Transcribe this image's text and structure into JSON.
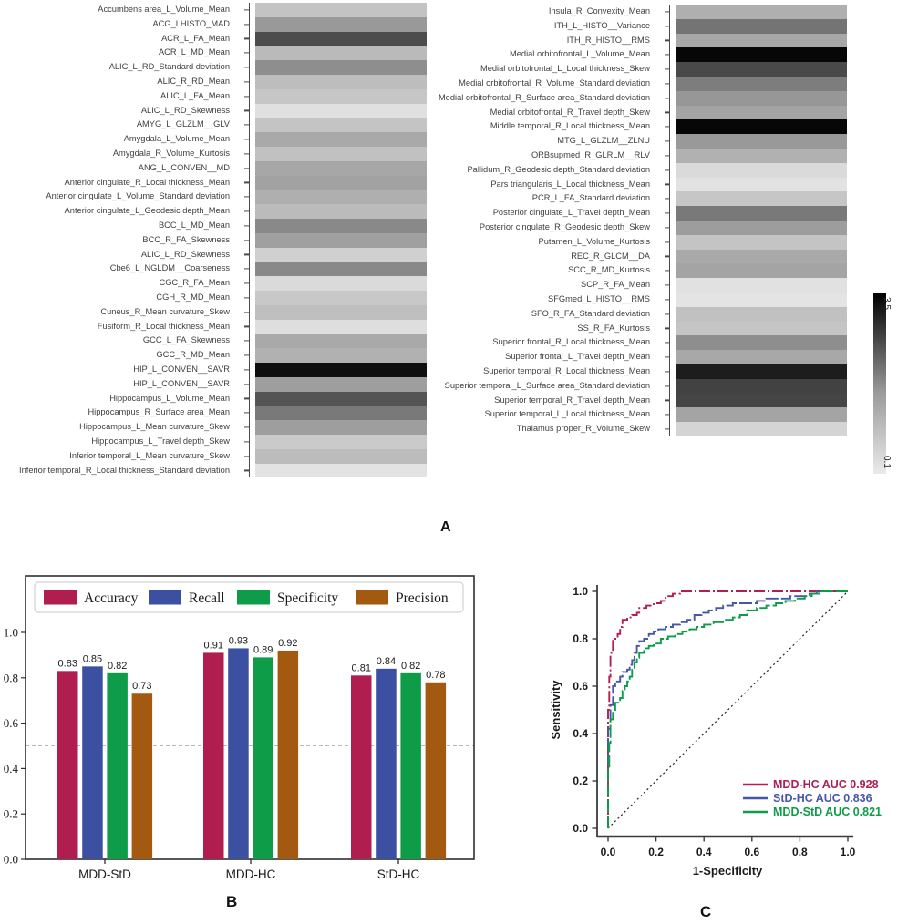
{
  "panels": {
    "a_label": "A",
    "b_label": "B",
    "c_label": "C"
  },
  "chart_data": [
    {
      "type": "heatmap",
      "colorbar": {
        "min": 0.1,
        "max": 3.5,
        "min_label": "0.1",
        "max_label": "3.5"
      },
      "left_rows": [
        {
          "label": "Accumbens area_L_Volume_Mean",
          "value": 0.66
        },
        {
          "label": "ACG_LHISTO_MAD",
          "value": 1.27
        },
        {
          "label": "ACR_L_FA_Mean",
          "value": 2.39
        },
        {
          "label": "ACR_L_MD_Mean",
          "value": 0.78
        },
        {
          "label": "ALIC_L_RD_Standard deviation",
          "value": 1.43
        },
        {
          "label": "ALIC_R_RD_Mean",
          "value": 0.74
        },
        {
          "label": "ALIC_L_FA_Mean",
          "value": 0.61
        },
        {
          "label": "ALIC_L_RD_Skewness",
          "value": 0.23
        },
        {
          "label": "AMYG_L_GLZLM__GLV",
          "value": 0.64
        },
        {
          "label": "Amygdala_L_Volume_Mean",
          "value": 1.03
        },
        {
          "label": "Amygdala_R_Volume_Kurtosis",
          "value": 0.68
        },
        {
          "label": "ANG_L_CONVEN__MD",
          "value": 1.07
        },
        {
          "label": "Anterior cingulate_R_Local thickness_Mean",
          "value": 1.14
        },
        {
          "label": "Anterior cingulate_L_Volume_Standard deviation",
          "value": 0.95
        },
        {
          "label": "Anterior cingulate_L_Geodesic depth_Mean",
          "value": 0.77
        },
        {
          "label": "BCC_L_MD_Mean",
          "value": 1.5
        },
        {
          "label": "BCC_R_FA_Skewness",
          "value": 1.16
        },
        {
          "label": "ALIC_L_RD_Skewness",
          "value": 0.46
        },
        {
          "label": "Cbe6_L_NGLDM__Coarseness",
          "value": 1.5
        },
        {
          "label": "CGC_R_FA_Mean",
          "value": 0.32
        },
        {
          "label": "CGH_R_MD_Mean",
          "value": 0.58
        },
        {
          "label": "Cuneus_R_Mean curvature_Skew",
          "value": 0.72
        },
        {
          "label": "Fusiform_R_Local thickness_Mean",
          "value": 0.26
        },
        {
          "label": "GCC_L_FA_Skewness",
          "value": 1.03
        },
        {
          "label": "GCC_R_MD_Mean",
          "value": 0.91
        },
        {
          "label": "HIP_L_CONVEN__SAVR",
          "value": 3.3
        },
        {
          "label": "HIP_L_CONVEN__SAVR",
          "value": 1.19
        },
        {
          "label": "Hippocampus_L_Volume_Mean",
          "value": 2.27
        },
        {
          "label": "Hippocampus_R_Surface area_Mean",
          "value": 1.73
        },
        {
          "label": "Hippocampus_L_Mean curvature_Skew",
          "value": 1.19
        },
        {
          "label": "Hippocampus_L_Travel depth_Skew",
          "value": 0.55
        },
        {
          "label": "Inferior temporal_L_Mean curvature_Skew",
          "value": 0.75
        },
        {
          "label": "Inferior temporal_R_Local thickness_Standard deviation",
          "value": 0.19
        }
      ],
      "right_rows": [
        {
          "label": "Insula_R_Convexity_Mean",
          "value": 0.95
        },
        {
          "label": "ITH_L_HISTO__Variance",
          "value": 1.81
        },
        {
          "label": "ITH_R_HISTO__RMS",
          "value": 1.07
        },
        {
          "label": "Medial orbitofrontal_L_Volume_Mean",
          "value": 3.4
        },
        {
          "label": "Medial orbitofrontal_L_Local thickness_Skew",
          "value": 2.43
        },
        {
          "label": "Medial orbitofrontal_R_Volume_Standard deviation",
          "value": 1.68
        },
        {
          "label": "Medial orbitofrontal_R_Surface area_Standard deviation",
          "value": 1.29
        },
        {
          "label": "Medial orbitofrontal_R_Travel depth_Skew",
          "value": 1.11
        },
        {
          "label": "Middle temporal_R_Local thickness_Mean",
          "value": 3.4
        },
        {
          "label": "MTG_L_GLZLM__ZLNU",
          "value": 1.27
        },
        {
          "label": "ORBsupmed_R_GLRLM__RLV",
          "value": 0.92
        },
        {
          "label": "Pallidum_R_Geodesic depth_Standard deviation",
          "value": 0.32
        },
        {
          "label": "Pars triangularis_L_Local thickness_Mean",
          "value": 0.2
        },
        {
          "label": "PCR_L_FA_Standard deviation",
          "value": 0.61
        },
        {
          "label": "Posterior cingulate_L_Travel depth_Mean",
          "value": 1.73
        },
        {
          "label": "Posterior cingulate_R_Geodesic depth_Skew",
          "value": 1.21
        },
        {
          "label": "Putamen_L_Volume_Kurtosis",
          "value": 0.64
        },
        {
          "label": "REC_R_GLCM__DA",
          "value": 1.04
        },
        {
          "label": "SCC_R_MD_Kurtosis",
          "value": 1.11
        },
        {
          "label": "SCP_R_FA_Mean",
          "value": 0.22
        },
        {
          "label": "SFGmed_L_HISTO__RMS",
          "value": 0.17
        },
        {
          "label": "SFO_R_FA_Standard deviation",
          "value": 0.68
        },
        {
          "label": "SS_R_FA_Kurtosis",
          "value": 0.62
        },
        {
          "label": "Superior frontal_R_Local thickness_Mean",
          "value": 1.43
        },
        {
          "label": "Superior frontal_L_Travel depth_Mean",
          "value": 1.05
        },
        {
          "label": "Superior temporal_R_Local thickness_Mean",
          "value": 3.07
        },
        {
          "label": "Superior temporal_L_Surface area_Standard deviation",
          "value": 2.54
        },
        {
          "label": "Superior temporal_R_Travel depth_Mean",
          "value": 2.5
        },
        {
          "label": "Superior temporal_L_Local thickness_Mean",
          "value": 1.1
        },
        {
          "label": "Thalamus proper_R_Volume_Skew",
          "value": 0.4
        }
      ]
    },
    {
      "type": "bar",
      "categories": [
        "MDD-StD",
        "MDD-HC",
        "StD-HC"
      ],
      "series": [
        {
          "name": "Accuracy",
          "color": "#b01e50",
          "values": [
            0.83,
            0.91,
            0.81
          ]
        },
        {
          "name": "Recall",
          "color": "#3c50a2",
          "values": [
            0.85,
            0.93,
            0.84
          ]
        },
        {
          "name": "Specificity",
          "color": "#0f9c49",
          "values": [
            0.82,
            0.89,
            0.82
          ]
        },
        {
          "name": "Precision",
          "color": "#a3590f",
          "values": [
            0.73,
            0.92,
            0.78
          ]
        }
      ],
      "ylim": [
        0,
        1.25
      ],
      "yticks": [
        0,
        0.2,
        0.4,
        0.6,
        0.8,
        1.0
      ],
      "ref_line": 0.5,
      "legend_position": "top"
    },
    {
      "type": "line",
      "xlabel": "1-Specificity",
      "ylabel": "Sensitivity",
      "xticks": [
        0,
        0.2,
        0.4,
        0.6,
        0.8,
        1.0
      ],
      "yticks": [
        0,
        0.2,
        0.4,
        0.6,
        0.8,
        1.0
      ],
      "diagonal": true,
      "series": [
        {
          "label": "MDD-HC AUC 0.928",
          "color": "#b21e52",
          "dash": "12 3 2 3",
          "points": [
            [
              0,
              0
            ],
            [
              0,
              0.5
            ],
            [
              0.005,
              0.56
            ],
            [
              0.005,
              0.64
            ],
            [
              0.01,
              0.68
            ],
            [
              0.01,
              0.74
            ],
            [
              0.02,
              0.76
            ],
            [
              0.02,
              0.8
            ],
            [
              0.04,
              0.82
            ],
            [
              0.05,
              0.85
            ],
            [
              0.06,
              0.88
            ],
            [
              0.08,
              0.89
            ],
            [
              0.1,
              0.9
            ],
            [
              0.12,
              0.91
            ],
            [
              0.13,
              0.93
            ],
            [
              0.16,
              0.94
            ],
            [
              0.19,
              0.95
            ],
            [
              0.22,
              0.96
            ],
            [
              0.24,
              0.98
            ],
            [
              0.27,
              0.99
            ],
            [
              0.3,
              1
            ],
            [
              1,
              1
            ]
          ]
        },
        {
          "label": "StD-HC AUC 0.836",
          "color": "#4656aa",
          "dash": "14 3",
          "points": [
            [
              0,
              0
            ],
            [
              0,
              0.42
            ],
            [
              0.01,
              0.46
            ],
            [
              0.01,
              0.52
            ],
            [
              0.02,
              0.56
            ],
            [
              0.02,
              0.6
            ],
            [
              0.03,
              0.62
            ],
            [
              0.05,
              0.64
            ],
            [
              0.06,
              0.66
            ],
            [
              0.08,
              0.67
            ],
            [
              0.09,
              0.69
            ],
            [
              0.1,
              0.71
            ],
            [
              0.11,
              0.74
            ],
            [
              0.12,
              0.77
            ],
            [
              0.13,
              0.79
            ],
            [
              0.15,
              0.8
            ],
            [
              0.17,
              0.82
            ],
            [
              0.19,
              0.83
            ],
            [
              0.21,
              0.84
            ],
            [
              0.24,
              0.85
            ],
            [
              0.27,
              0.86
            ],
            [
              0.3,
              0.87
            ],
            [
              0.33,
              0.88
            ],
            [
              0.36,
              0.9
            ],
            [
              0.39,
              0.91
            ],
            [
              0.42,
              0.92
            ],
            [
              0.45,
              0.93
            ],
            [
              0.48,
              0.94
            ],
            [
              0.52,
              0.95
            ],
            [
              0.58,
              0.95
            ],
            [
              0.62,
              0.96
            ],
            [
              0.66,
              0.97
            ],
            [
              0.72,
              0.97
            ],
            [
              0.76,
              0.98
            ],
            [
              0.8,
              0.98
            ],
            [
              0.84,
              0.99
            ],
            [
              0.87,
              1
            ],
            [
              1,
              1
            ]
          ]
        },
        {
          "label": "MDD-StD AUC 0.821",
          "color": "#0f9c49",
          "dash": "14 3",
          "points": [
            [
              0,
              0
            ],
            [
              0,
              0.26
            ],
            [
              0.005,
              0.3
            ],
            [
              0.005,
              0.36
            ],
            [
              0.01,
              0.4
            ],
            [
              0.01,
              0.46
            ],
            [
              0.02,
              0.5
            ],
            [
              0.03,
              0.53
            ],
            [
              0.05,
              0.55
            ],
            [
              0.06,
              0.58
            ],
            [
              0.07,
              0.6
            ],
            [
              0.08,
              0.62
            ],
            [
              0.09,
              0.64
            ],
            [
              0.1,
              0.67
            ],
            [
              0.11,
              0.7
            ],
            [
              0.12,
              0.72
            ],
            [
              0.13,
              0.74
            ],
            [
              0.15,
              0.76
            ],
            [
              0.17,
              0.77
            ],
            [
              0.19,
              0.78
            ],
            [
              0.22,
              0.8
            ],
            [
              0.25,
              0.81
            ],
            [
              0.28,
              0.82
            ],
            [
              0.31,
              0.83
            ],
            [
              0.34,
              0.84
            ],
            [
              0.37,
              0.85
            ],
            [
              0.4,
              0.86
            ],
            [
              0.44,
              0.87
            ],
            [
              0.48,
              0.88
            ],
            [
              0.52,
              0.89
            ],
            [
              0.55,
              0.9
            ],
            [
              0.58,
              0.92
            ],
            [
              0.62,
              0.93
            ],
            [
              0.66,
              0.94
            ],
            [
              0.7,
              0.95
            ],
            [
              0.74,
              0.96
            ],
            [
              0.78,
              0.97
            ],
            [
              0.82,
              0.98
            ],
            [
              0.85,
              0.99
            ],
            [
              0.88,
              1
            ],
            [
              1,
              1
            ]
          ]
        }
      ]
    }
  ]
}
